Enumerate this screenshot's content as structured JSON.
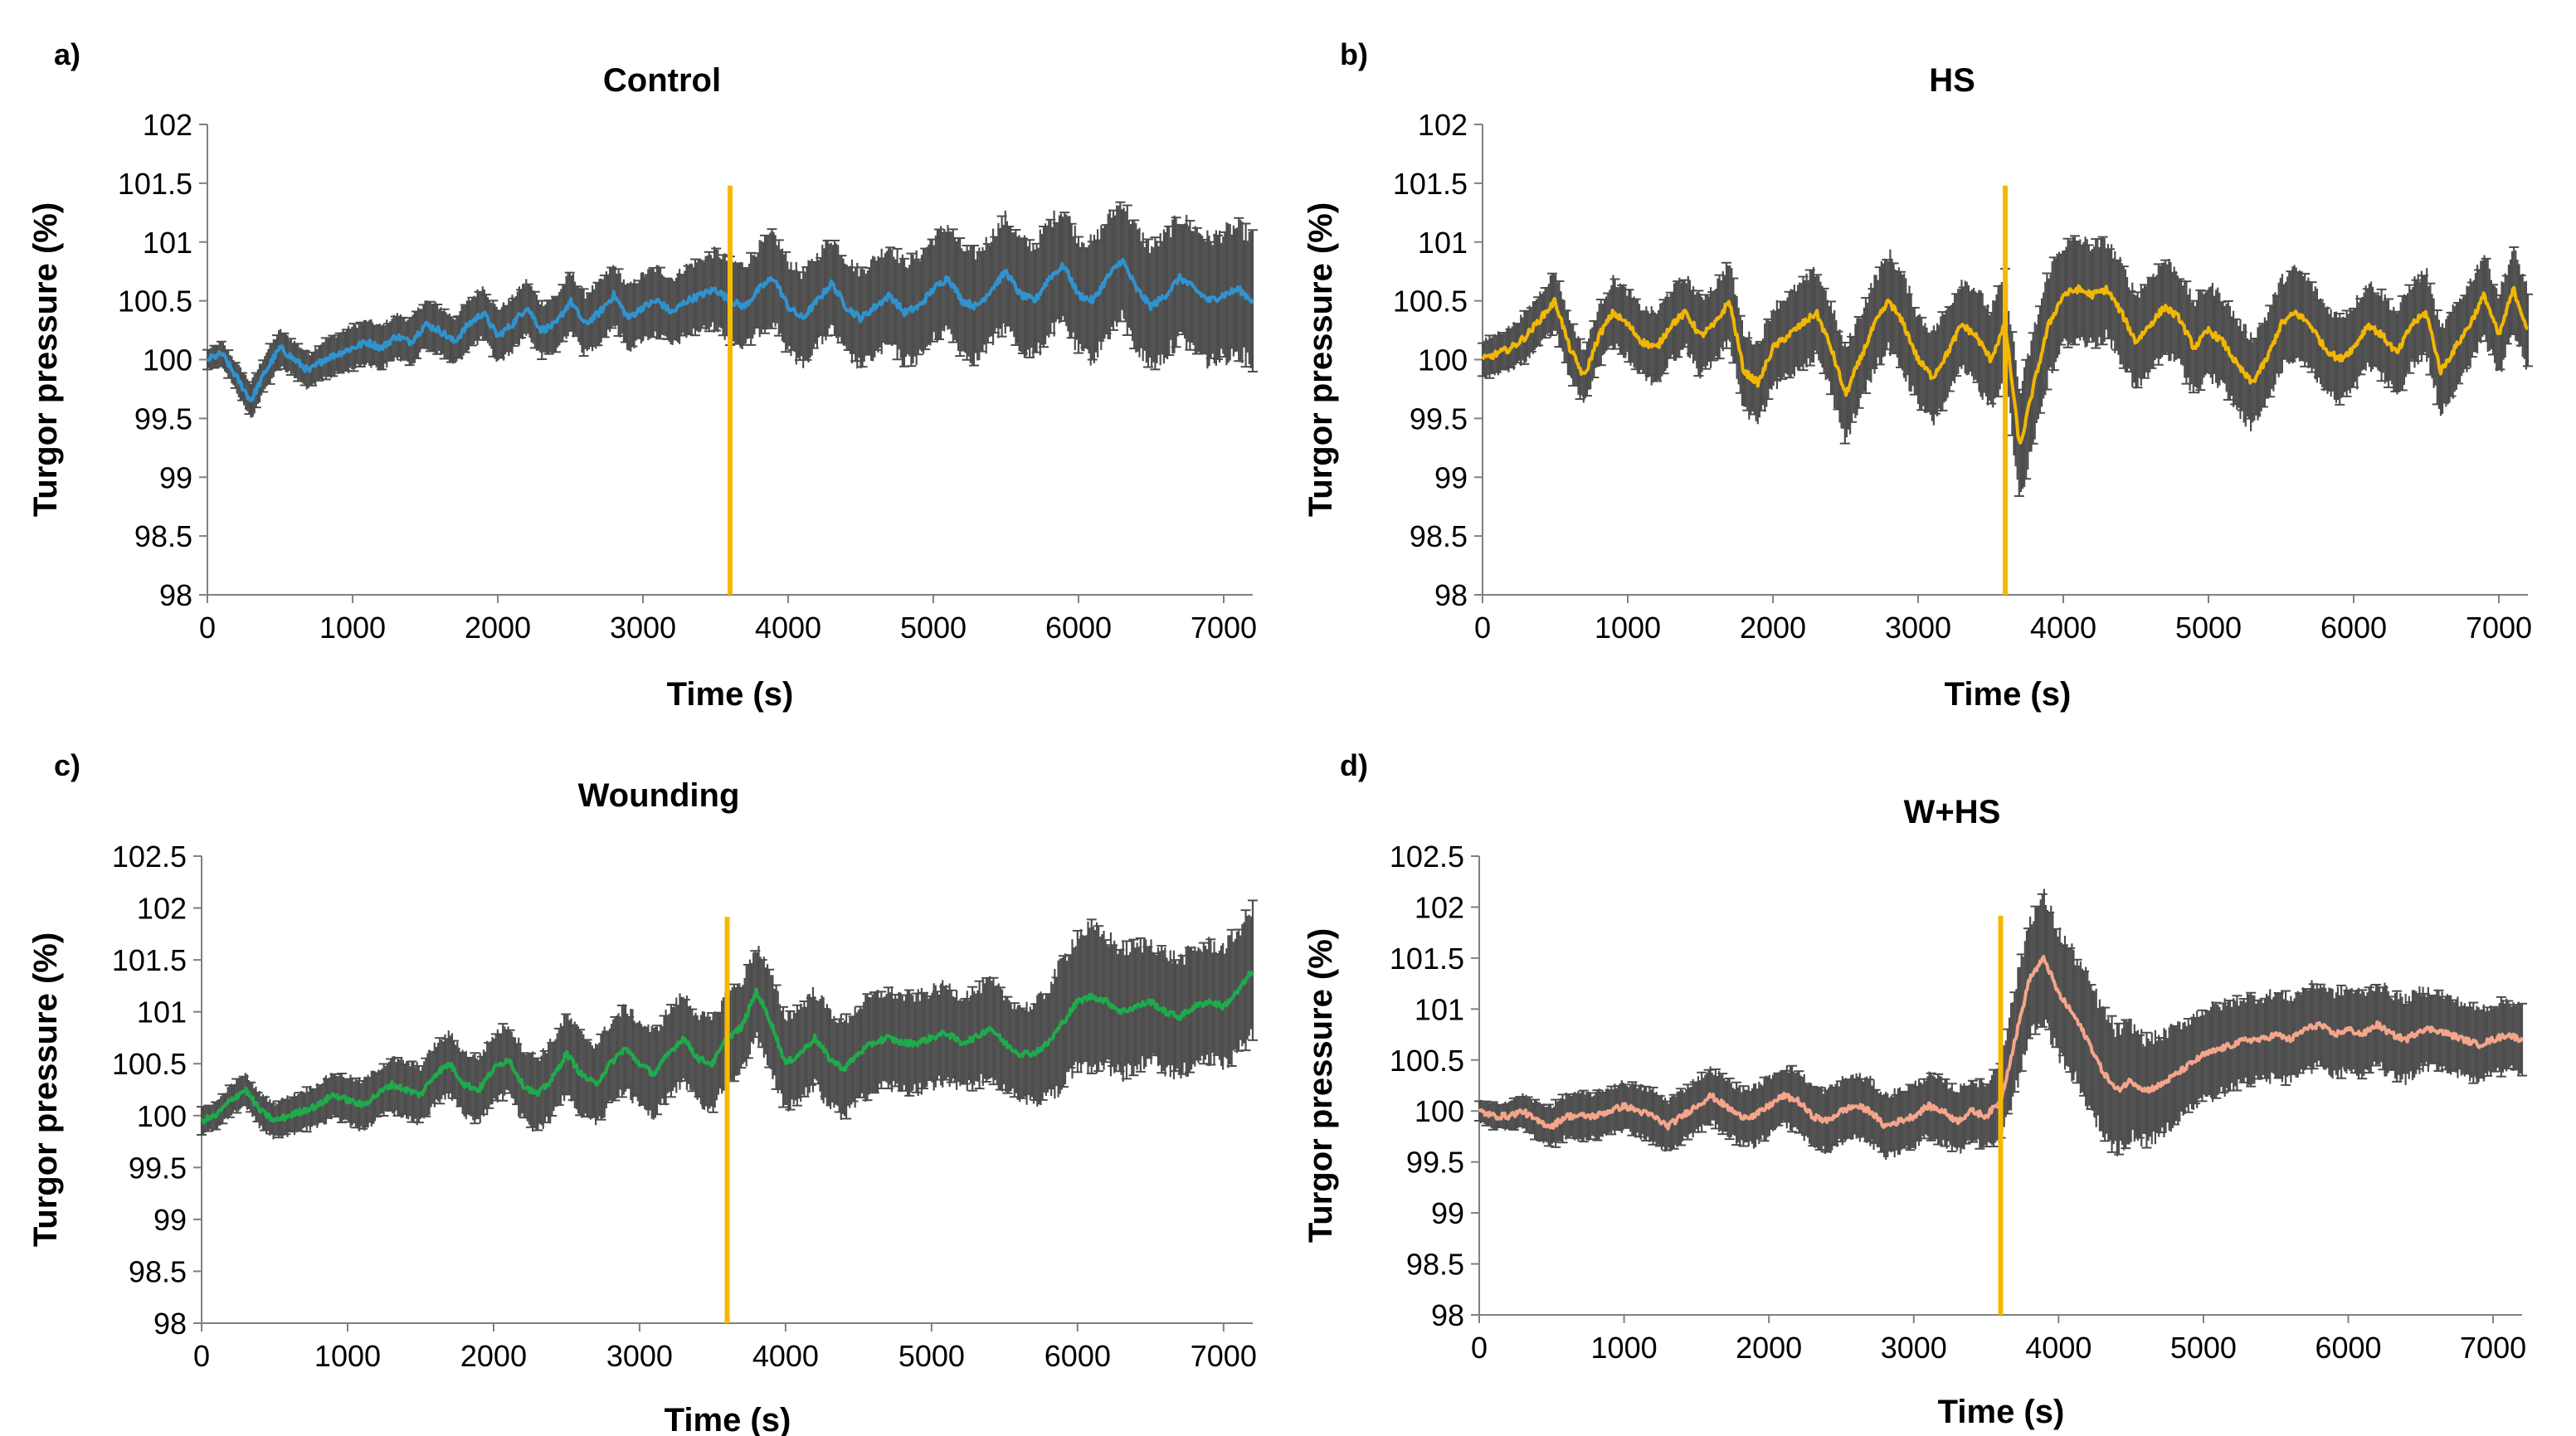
{
  "chart_data": [
    {
      "type": "line",
      "panel_label": "a)",
      "title": "Control",
      "xlabel": "Time (s)",
      "ylabel": "Turgor pressure (%)",
      "xlim": [
        0,
        7200
      ],
      "ylim": [
        98,
        102
      ],
      "x_ticks": [
        "0",
        "1000",
        "2000",
        "3000",
        "4000",
        "5000",
        "6000",
        "7000"
      ],
      "y_ticks": [
        "98",
        "98.5",
        "99",
        "99.5",
        "100",
        "100.5",
        "101",
        "101.5",
        "102"
      ],
      "marker_x": 3600,
      "line_color": "#2F93CF",
      "band_color": "#4D4D4D",
      "series": [
        {
          "name": "Control",
          "x": [
            0,
            100,
            200,
            300,
            400,
            500,
            600,
            700,
            800,
            900,
            1000,
            1100,
            1200,
            1300,
            1400,
            1500,
            1600,
            1700,
            1800,
            1900,
            2000,
            2100,
            2200,
            2300,
            2400,
            2500,
            2600,
            2700,
            2800,
            2900,
            3000,
            3100,
            3200,
            3300,
            3400,
            3500,
            3600,
            3700,
            3800,
            3900,
            4000,
            4100,
            4200,
            4300,
            4400,
            4500,
            4600,
            4700,
            4800,
            4900,
            5000,
            5100,
            5200,
            5300,
            5400,
            5500,
            5600,
            5700,
            5800,
            5900,
            6000,
            6100,
            6200,
            6300,
            6400,
            6500,
            6600,
            6700,
            6800,
            6900,
            7000,
            7100,
            7200
          ],
          "values": [
            100,
            100.05,
            99.85,
            99.65,
            99.9,
            100.1,
            100,
            99.9,
            100,
            100.05,
            100.1,
            100.15,
            100.1,
            100.2,
            100.15,
            100.3,
            100.25,
            100.15,
            100.3,
            100.4,
            100.2,
            100.3,
            100.45,
            100.25,
            100.3,
            100.5,
            100.3,
            100.4,
            100.55,
            100.35,
            100.45,
            100.5,
            100.4,
            100.5,
            100.55,
            100.6,
            100.5,
            100.45,
            100.6,
            100.7,
            100.45,
            100.35,
            100.5,
            100.65,
            100.45,
            100.35,
            100.45,
            100.55,
            100.4,
            100.45,
            100.6,
            100.7,
            100.5,
            100.45,
            100.6,
            100.75,
            100.55,
            100.5,
            100.7,
            100.8,
            100.55,
            100.5,
            100.7,
            100.85,
            100.6,
            100.45,
            100.55,
            100.7,
            100.6,
            100.5,
            100.55,
            100.6,
            100.5
          ],
          "errors": [
            0.08,
            0.1,
            0.12,
            0.15,
            0.15,
            0.15,
            0.15,
            0.15,
            0.16,
            0.17,
            0.18,
            0.18,
            0.18,
            0.18,
            0.19,
            0.2,
            0.2,
            0.2,
            0.2,
            0.22,
            0.22,
            0.22,
            0.22,
            0.23,
            0.23,
            0.24,
            0.25,
            0.25,
            0.25,
            0.26,
            0.27,
            0.28,
            0.28,
            0.29,
            0.3,
            0.32,
            0.33,
            0.35,
            0.36,
            0.37,
            0.38,
            0.38,
            0.38,
            0.39,
            0.4,
            0.4,
            0.41,
            0.42,
            0.42,
            0.43,
            0.43,
            0.44,
            0.44,
            0.45,
            0.45,
            0.46,
            0.46,
            0.47,
            0.47,
            0.48,
            0.48,
            0.49,
            0.49,
            0.5,
            0.5,
            0.5,
            0.51,
            0.51,
            0.52,
            0.52,
            0.53,
            0.53,
            0.54
          ]
        }
      ]
    },
    {
      "type": "line",
      "panel_label": "b)",
      "title": "HS",
      "xlabel": "Time (s)",
      "ylabel": "Turgor pressure (%)",
      "xlim": [
        0,
        7200
      ],
      "ylim": [
        98,
        102
      ],
      "x_ticks": [
        "0",
        "1000",
        "2000",
        "3000",
        "4000",
        "5000",
        "6000",
        "7000"
      ],
      "y_ticks": [
        "98",
        "98.5",
        "99",
        "99.5",
        "100",
        "100.5",
        "101",
        "101.5",
        "102"
      ],
      "marker_x": 3600,
      "line_color": "#F2B705",
      "band_color": "#4D4D4D",
      "series": [
        {
          "name": "HS",
          "x": [
            0,
            100,
            200,
            300,
            400,
            500,
            600,
            700,
            800,
            900,
            1000,
            1100,
            1200,
            1300,
            1400,
            1500,
            1600,
            1700,
            1800,
            1900,
            2000,
            2100,
            2200,
            2300,
            2400,
            2500,
            2600,
            2700,
            2800,
            2900,
            3000,
            3100,
            3200,
            3300,
            3400,
            3500,
            3600,
            3700,
            3800,
            3900,
            4000,
            4100,
            4200,
            4300,
            4400,
            4500,
            4600,
            4700,
            4800,
            4900,
            5000,
            5100,
            5200,
            5300,
            5400,
            5500,
            5600,
            5700,
            5800,
            5900,
            6000,
            6100,
            6200,
            6300,
            6400,
            6500,
            6600,
            6700,
            6800,
            6900,
            7000,
            7100,
            7200
          ],
          "values": [
            100,
            100.05,
            100.1,
            100.2,
            100.35,
            100.5,
            100.1,
            99.85,
            100.2,
            100.4,
            100.3,
            100.15,
            100.1,
            100.3,
            100.4,
            100.2,
            100.3,
            100.5,
            99.9,
            99.8,
            100.1,
            100.2,
            100.3,
            100.4,
            100.1,
            99.7,
            100,
            100.3,
            100.5,
            100.3,
            100,
            99.85,
            100.05,
            100.3,
            100.2,
            100,
            100.3,
            99.25,
            99.8,
            100.3,
            100.55,
            100.6,
            100.55,
            100.6,
            100.4,
            100.15,
            100.3,
            100.45,
            100.35,
            100.1,
            100.25,
            100.15,
            99.95,
            99.8,
            100,
            100.3,
            100.4,
            100.3,
            100.1,
            100,
            100.1,
            100.3,
            100.2,
            100.05,
            100.3,
            100.4,
            99.9,
            100.1,
            100.3,
            100.55,
            100.2,
            100.6,
            100.25
          ],
          "errors": [
            0.15,
            0.17,
            0.18,
            0.2,
            0.22,
            0.25,
            0.25,
            0.22,
            0.24,
            0.28,
            0.28,
            0.28,
            0.3,
            0.3,
            0.3,
            0.32,
            0.32,
            0.33,
            0.33,
            0.33,
            0.34,
            0.34,
            0.35,
            0.36,
            0.36,
            0.38,
            0.38,
            0.38,
            0.4,
            0.4,
            0.38,
            0.38,
            0.38,
            0.38,
            0.4,
            0.4,
            0.42,
            0.45,
            0.45,
            0.45,
            0.42,
            0.42,
            0.42,
            0.4,
            0.4,
            0.4,
            0.4,
            0.4,
            0.38,
            0.38,
            0.38,
            0.38,
            0.38,
            0.38,
            0.37,
            0.37,
            0.37,
            0.36,
            0.36,
            0.36,
            0.36,
            0.35,
            0.35,
            0.35,
            0.35,
            0.35,
            0.35,
            0.35,
            0.35,
            0.35,
            0.34,
            0.34,
            0.34
          ]
        }
      ]
    },
    {
      "type": "line",
      "panel_label": "c)",
      "title": "Wounding",
      "xlabel": "Time (s)",
      "ylabel": "Turgor pressure (%)",
      "xlim": [
        0,
        7200
      ],
      "ylim": [
        98,
        102.5
      ],
      "x_ticks": [
        "0",
        "1000",
        "2000",
        "3000",
        "4000",
        "5000",
        "6000",
        "7000"
      ],
      "y_ticks": [
        "98",
        "98.5",
        "99",
        "99.5",
        "100",
        "100.5",
        "101",
        "101.5",
        "102",
        "102.5"
      ],
      "marker_x": 3600,
      "line_color": "#1FAA4B",
      "band_color": "#4D4D4D",
      "series": [
        {
          "name": "Wounding",
          "x": [
            0,
            100,
            200,
            300,
            400,
            500,
            600,
            700,
            800,
            900,
            1000,
            1100,
            1200,
            1300,
            1400,
            1500,
            1600,
            1700,
            1800,
            1900,
            2000,
            2100,
            2200,
            2300,
            2400,
            2500,
            2600,
            2700,
            2800,
            2900,
            3000,
            3100,
            3200,
            3300,
            3400,
            3500,
            3600,
            3700,
            3800,
            3900,
            4000,
            4100,
            4200,
            4300,
            4400,
            4500,
            4600,
            4700,
            4800,
            4900,
            5000,
            5100,
            5200,
            5300,
            5400,
            5500,
            5600,
            5700,
            5800,
            5900,
            6000,
            6100,
            6200,
            6300,
            6400,
            6500,
            6600,
            6700,
            6800,
            6900,
            7000,
            7100,
            7200
          ],
          "values": [
            99.95,
            100,
            100.15,
            100.25,
            100.05,
            99.95,
            100,
            100.05,
            100.1,
            100.2,
            100.15,
            100.1,
            100.2,
            100.3,
            100.25,
            100.2,
            100.4,
            100.5,
            100.3,
            100.25,
            100.45,
            100.55,
            100.3,
            100.2,
            100.35,
            100.6,
            100.4,
            100.3,
            100.5,
            100.65,
            100.5,
            100.4,
            100.6,
            100.75,
            100.55,
            100.5,
            100.75,
            100.85,
            101.2,
            100.9,
            100.5,
            100.6,
            100.75,
            100.55,
            100.45,
            100.6,
            100.7,
            100.75,
            100.7,
            100.7,
            100.75,
            100.8,
            100.7,
            100.75,
            100.85,
            100.7,
            100.6,
            100.6,
            100.7,
            100.9,
            101.1,
            101.15,
            101.1,
            101,
            101.05,
            101.1,
            101,
            100.95,
            101.05,
            101.1,
            101.05,
            101.2,
            101.4
          ],
          "errors": [
            0.12,
            0.13,
            0.14,
            0.15,
            0.16,
            0.17,
            0.18,
            0.19,
            0.2,
            0.21,
            0.22,
            0.23,
            0.24,
            0.25,
            0.26,
            0.27,
            0.28,
            0.29,
            0.3,
            0.31,
            0.32,
            0.33,
            0.34,
            0.35,
            0.36,
            0.37,
            0.38,
            0.38,
            0.39,
            0.39,
            0.4,
            0.4,
            0.41,
            0.41,
            0.42,
            0.42,
            0.43,
            0.43,
            0.44,
            0.44,
            0.45,
            0.45,
            0.45,
            0.45,
            0.45,
            0.45,
            0.45,
            0.45,
            0.45,
            0.45,
            0.45,
            0.45,
            0.45,
            0.45,
            0.45,
            0.45,
            0.45,
            0.45,
            0.52,
            0.6,
            0.65,
            0.65,
            0.62,
            0.6,
            0.58,
            0.57,
            0.56,
            0.55,
            0.55,
            0.55,
            0.56,
            0.58,
            0.6
          ]
        }
      ]
    },
    {
      "type": "line",
      "panel_label": "d)",
      "title": "W+HS",
      "xlabel": "Time (s)",
      "ylabel": "Turgor pressure (%)",
      "xlim": [
        0,
        7200
      ],
      "ylim": [
        98,
        102.5
      ],
      "x_ticks": [
        "0",
        "1000",
        "2000",
        "3000",
        "4000",
        "5000",
        "6000",
        "7000"
      ],
      "y_ticks": [
        "98",
        "98.5",
        "99",
        "99.5",
        "100",
        "100.5",
        "101",
        "101.5",
        "102",
        "102.5"
      ],
      "marker_x": 3600,
      "line_color": "#F4A58A",
      "band_color": "#4D4D4D",
      "series": [
        {
          "name": "W+HS",
          "x": [
            0,
            100,
            200,
            300,
            400,
            500,
            600,
            700,
            800,
            900,
            1000,
            1100,
            1200,
            1300,
            1400,
            1500,
            1600,
            1700,
            1800,
            1900,
            2000,
            2100,
            2200,
            2300,
            2400,
            2500,
            2600,
            2700,
            2800,
            2900,
            3000,
            3100,
            3200,
            3300,
            3400,
            3500,
            3600,
            3700,
            3800,
            3900,
            4000,
            4100,
            4200,
            4300,
            4400,
            4500,
            4600,
            4700,
            4800,
            4900,
            5000,
            5100,
            5200,
            5300,
            5400,
            5500,
            5600,
            5700,
            5800,
            5900,
            6000,
            6100,
            6200,
            6300,
            6400,
            6500,
            6600,
            6700,
            6800,
            6900,
            7000,
            7100,
            7200
          ],
          "values": [
            100,
            99.95,
            99.95,
            100,
            99.9,
            99.85,
            99.95,
            99.95,
            99.95,
            100,
            100.05,
            100,
            99.95,
            99.85,
            99.95,
            100.05,
            100.15,
            100.05,
            99.95,
            99.95,
            100.05,
            100.15,
            100.1,
            99.95,
            99.9,
            100,
            100.05,
            100,
            99.85,
            99.9,
            99.95,
            100.05,
            100,
            99.9,
            100,
            99.95,
            100.1,
            100.7,
            101.3,
            101.5,
            101.15,
            100.95,
            100.7,
            100.4,
            100.2,
            100.3,
            100.2,
            100.25,
            100.35,
            100.45,
            100.55,
            100.6,
            100.65,
            100.7,
            100.7,
            100.75,
            100.7,
            100.8,
            100.85,
            100.75,
            100.8,
            100.75,
            100.85,
            100.75,
            100.7,
            100.8,
            100.8,
            100.75,
            100.7,
            100.65,
            100.7,
            100.75,
            100.7
          ],
          "errors": [
            0.1,
            0.12,
            0.14,
            0.16,
            0.18,
            0.2,
            0.21,
            0.22,
            0.22,
            0.23,
            0.23,
            0.24,
            0.25,
            0.25,
            0.25,
            0.26,
            0.26,
            0.27,
            0.27,
            0.28,
            0.28,
            0.28,
            0.29,
            0.29,
            0.3,
            0.3,
            0.3,
            0.3,
            0.3,
            0.3,
            0.3,
            0.3,
            0.3,
            0.3,
            0.3,
            0.3,
            0.4,
            0.5,
            0.58,
            0.6,
            0.6,
            0.6,
            0.6,
            0.6,
            0.58,
            0.55,
            0.5,
            0.48,
            0.46,
            0.45,
            0.44,
            0.43,
            0.42,
            0.42,
            0.41,
            0.41,
            0.4,
            0.4,
            0.4,
            0.4,
            0.4,
            0.4,
            0.4,
            0.4,
            0.39,
            0.38,
            0.37,
            0.36,
            0.35,
            0.35,
            0.34,
            0.34,
            0.33
          ]
        }
      ]
    }
  ]
}
